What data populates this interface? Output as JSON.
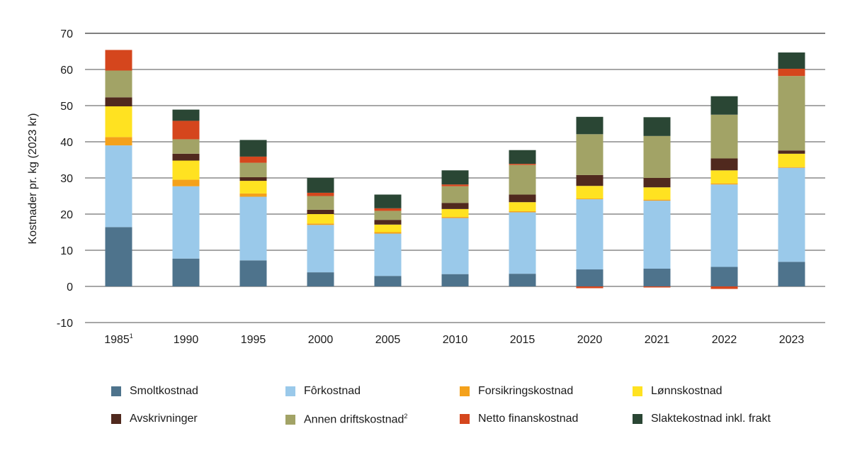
{
  "chart_data": {
    "type": "bar",
    "stacked": true,
    "ylabel": "Kostnader pr. kg (2023 kr)",
    "ylim": [
      -10,
      70
    ],
    "yticks": [
      -10,
      0,
      10,
      20,
      30,
      40,
      50,
      60,
      70
    ],
    "grid": true,
    "legend_position": "bottom",
    "categories": [
      "1985",
      "1990",
      "1995",
      "2000",
      "2005",
      "2010",
      "2015",
      "2020",
      "2021",
      "2022",
      "2023"
    ],
    "category_footnotes": {
      "1985": "1"
    },
    "series": [
      {
        "name": "Smoltkostnad",
        "color": "#4e738c",
        "values": [
          16.4,
          7.7,
          7.2,
          3.9,
          2.9,
          3.4,
          3.5,
          4.7,
          4.9,
          5.4,
          6.8
        ]
      },
      {
        "name": "Fôrkostnad",
        "color": "#9ac9ea",
        "values": [
          22.6,
          20.0,
          17.6,
          13.1,
          11.7,
          15.5,
          17.0,
          19.4,
          18.8,
          22.8,
          26.0
        ]
      },
      {
        "name": "Forsikringskostnad",
        "color": "#f4a11b",
        "values": [
          2.3,
          1.8,
          0.9,
          0.4,
          0.4,
          0.3,
          0.3,
          0.2,
          0.3,
          0.3,
          0.2
        ]
      },
      {
        "name": "Lønnskostnad",
        "color": "#ffe221",
        "values": [
          8.5,
          5.3,
          3.5,
          2.6,
          2.1,
          2.2,
          2.5,
          3.5,
          3.4,
          3.6,
          3.7
        ]
      },
      {
        "name": "Avskrivninger",
        "color": "#50291e",
        "values": [
          2.5,
          1.9,
          1.0,
          1.2,
          1.3,
          1.7,
          2.1,
          3.0,
          2.6,
          3.3,
          0.9
        ]
      },
      {
        "name": "Annen driftskostnad",
        "footnote": "2",
        "color": "#a2a366",
        "values": [
          7.4,
          4.0,
          4.0,
          3.8,
          2.5,
          4.6,
          8.2,
          11.3,
          11.6,
          12.1,
          20.6
        ]
      },
      {
        "name": "Netto finanskostnad",
        "color": "#d5461d",
        "values": [
          5.7,
          5.1,
          1.7,
          0.9,
          0.7,
          0.5,
          0.3,
          -0.5,
          -0.3,
          -0.7,
          2.0
        ]
      },
      {
        "name": "Slaktekostnad inkl. frakt",
        "color": "#2a4634",
        "values": [
          0,
          3.1,
          4.6,
          4.1,
          3.8,
          3.9,
          3.8,
          4.8,
          5.2,
          5.1,
          4.5
        ]
      }
    ]
  }
}
